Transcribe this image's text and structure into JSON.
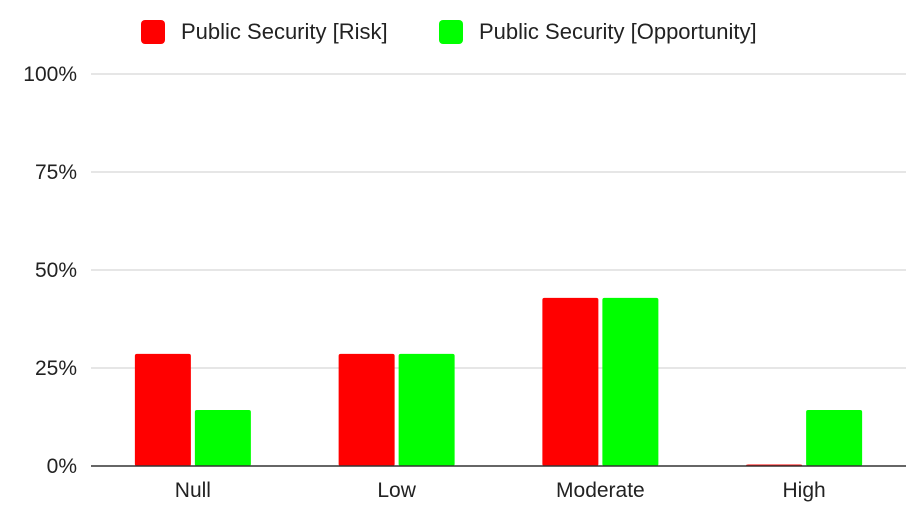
{
  "chart_data": {
    "type": "bar",
    "categories": [
      "Null",
      "Low",
      "Moderate",
      "High"
    ],
    "series": [
      {
        "name": "Public Security [Risk]",
        "color": "#ff0000",
        "values": [
          28.6,
          28.6,
          42.9,
          0
        ]
      },
      {
        "name": "Public Security [Opportunity]",
        "color": "#00ff00",
        "values": [
          14.3,
          28.6,
          42.9,
          14.3
        ]
      }
    ],
    "y_ticks": [
      "0%",
      "25%",
      "50%",
      "75%",
      "100%"
    ],
    "ylim": [
      0,
      100
    ],
    "grid": true,
    "legend_position": "top"
  }
}
